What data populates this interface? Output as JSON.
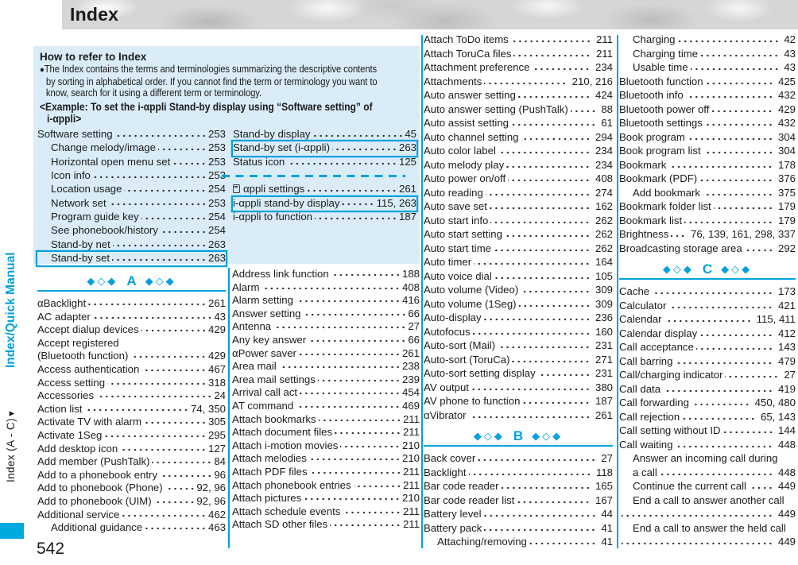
{
  "titlebar": {
    "title": "Index"
  },
  "sidebar": {
    "black_label": "Index (A - C)",
    "arrow": "▼",
    "blue_label": "Index/Quick Manual"
  },
  "page_number": "542",
  "colors": {
    "accent": "#00a1de",
    "box_bg": "#d9ecf8",
    "bar_bg": "#d6d6d6",
    "text": "#1b1b1b"
  },
  "howto": {
    "title": "How to refer to Index",
    "bullet": "The Index contains the terms and terminologies summarizing the descriptive contents\nby sorting in alphabetical order. If you cannot find the term or terminology you want to\nknow, search for it using a different term or terminology.",
    "example_line1": "<Example: To set the i-αppli Stand-by display using “Software setting” of",
    "example_line2": "i-αppli>",
    "left_rows": [
      {
        "label": "Software setting",
        "num": "253"
      },
      {
        "label": "Change melody/image",
        "num": "253",
        "indent": 1
      },
      {
        "label": "Horizontal open menu set",
        "num": "253",
        "indent": 1
      },
      {
        "label": "Icon info",
        "num": "253",
        "indent": 1
      },
      {
        "label": "Location usage",
        "num": "254",
        "indent": 1
      },
      {
        "label": "Network set",
        "num": "253",
        "indent": 1
      },
      {
        "label": "Program guide key",
        "num": "254",
        "indent": 1
      },
      {
        "label": "See phonebook/history",
        "num": "254",
        "indent": 1
      },
      {
        "label": "Stand-by net",
        "num": "263",
        "indent": 1
      },
      {
        "label": "Stand-by set",
        "num": "263",
        "indent": 1,
        "boxed": true
      }
    ],
    "right_rows": [
      {
        "label": "Stand-by display",
        "num": "45"
      },
      {
        "label": "Stand-by set (i-αppli)",
        "num": "263",
        "boxed": true
      },
      {
        "label": "Status icon",
        "num": "125"
      },
      {
        "type": "dashes"
      },
      {
        "label": "αppli settings",
        "num": "261",
        "icon": true
      },
      {
        "label": "i-αppli stand-by display",
        "num": "115, 263",
        "boxed": true
      },
      {
        "label": "i-αppli to function",
        "num": "187"
      }
    ]
  },
  "index": {
    "col1": [
      {
        "type": "section",
        "letter": "A"
      },
      {
        "label": "αBacklight",
        "num": "261"
      },
      {
        "label": "AC adapter",
        "num": "43"
      },
      {
        "label": "Accept dialup devices",
        "num": "429"
      },
      {
        "label": "Accept registered"
      },
      {
        "label": "(Bluetooth function)",
        "num": "429"
      },
      {
        "label": "Access authentication",
        "num": "467"
      },
      {
        "label": "Access setting",
        "num": "318"
      },
      {
        "label": "Accessories",
        "num": "24"
      },
      {
        "label": "Action list",
        "num": "74, 350"
      },
      {
        "label": "Activate TV with alarm",
        "num": "305"
      },
      {
        "label": "Activate 1Seg",
        "num": "295"
      },
      {
        "label": "Add desktop icon",
        "num": "127"
      },
      {
        "label": "Add member (PushTalk)",
        "num": "84"
      },
      {
        "label": "Add to a phonebook entry",
        "num": "96"
      },
      {
        "label": "Add to phonebook (Phone)",
        "num": "92, 96"
      },
      {
        "label": "Add to phonebook (UIM)",
        "num": "92, 96"
      },
      {
        "label": "Additional service",
        "num": "462"
      },
      {
        "label": "Additional guidance",
        "num": "463",
        "indent": 1
      }
    ],
    "col2": [
      {
        "label": "Address link function",
        "num": "188"
      },
      {
        "label": "Alarm",
        "num": "408"
      },
      {
        "label": "Alarm setting",
        "num": "416"
      },
      {
        "label": "Answer setting",
        "num": "66"
      },
      {
        "label": "Antenna",
        "num": "27"
      },
      {
        "label": "Any key answer",
        "num": "66"
      },
      {
        "label": "αPower saver",
        "num": "261"
      },
      {
        "label": "Area mail",
        "num": "238"
      },
      {
        "label": "Area mail settings",
        "num": "239"
      },
      {
        "label": "Arrival call act",
        "num": "454"
      },
      {
        "label": "AT command",
        "num": "469"
      },
      {
        "label": "Attach bookmarks",
        "num": "211"
      },
      {
        "label": "Attach document files",
        "num": "211"
      },
      {
        "label": "Attach i-motion movies",
        "num": "210"
      },
      {
        "label": "Attach melodies",
        "num": "210"
      },
      {
        "label": "Attach PDF files",
        "num": "211"
      },
      {
        "label": "Attach phonebook entries",
        "num": "211"
      },
      {
        "label": "Attach pictures",
        "num": "210"
      },
      {
        "label": "Attach schedule events",
        "num": "211"
      },
      {
        "label": "Attach SD other files",
        "num": "211"
      }
    ],
    "col3": [
      {
        "label": "Attach ToDo items",
        "num": "211"
      },
      {
        "label": "Attach ToruCa files",
        "num": "211"
      },
      {
        "label": "Attachment preference",
        "num": "234"
      },
      {
        "label": "Attachments",
        "num": "210, 216"
      },
      {
        "label": "Auto answer setting",
        "num": "424"
      },
      {
        "label": "Auto answer setting (PushTalk)",
        "num": "88"
      },
      {
        "label": "Auto assist setting",
        "num": "61"
      },
      {
        "label": "Auto channel setting",
        "num": "294"
      },
      {
        "label": "Auto color label",
        "num": "234"
      },
      {
        "label": "Auto melody play",
        "num": "234"
      },
      {
        "label": "Auto power on/off",
        "num": "408"
      },
      {
        "label": "Auto reading",
        "num": "274"
      },
      {
        "label": "Auto save set",
        "num": "162"
      },
      {
        "label": "Auto start info",
        "num": "262"
      },
      {
        "label": "Auto start setting",
        "num": "262"
      },
      {
        "label": "Auto start time",
        "num": "262"
      },
      {
        "label": "Auto timer",
        "num": "164"
      },
      {
        "label": "Auto voice dial",
        "num": "105"
      },
      {
        "label": "Auto volume (Video)",
        "num": "309"
      },
      {
        "label": "Auto volume (1Seg)",
        "num": "309"
      },
      {
        "label": "Auto-display",
        "num": "236"
      },
      {
        "label": "Autofocus",
        "num": "160"
      },
      {
        "label": "Auto-sort (Mail)",
        "num": "231"
      },
      {
        "label": "Auto-sort (ToruCa)",
        "num": "271"
      },
      {
        "label": "Auto-sort setting display",
        "num": "231"
      },
      {
        "label": "AV output",
        "num": "380"
      },
      {
        "label": "AV phone to function",
        "num": "187"
      },
      {
        "label": "αVibrator",
        "num": "261"
      },
      {
        "type": "section",
        "letter": "B"
      },
      {
        "label": "Back cover",
        "num": "27"
      },
      {
        "label": "Backlight",
        "num": "118"
      },
      {
        "label": "Bar code reader",
        "num": "165"
      },
      {
        "label": "Bar code reader list",
        "num": "167"
      },
      {
        "label": "Battery level",
        "num": "44"
      },
      {
        "label": "Battery pack",
        "num": "41"
      },
      {
        "label": "Attaching/removing",
        "num": "41",
        "indent": 1
      }
    ],
    "col4": [
      {
        "label": "Charging",
        "num": "42",
        "indent": 1
      },
      {
        "label": "Charging time",
        "num": "43",
        "indent": 1
      },
      {
        "label": "Usable time",
        "num": "43",
        "indent": 1
      },
      {
        "label": "Bluetooth function",
        "num": "425"
      },
      {
        "label": "Bluetooth info",
        "num": "432"
      },
      {
        "label": "Bluetooth power off",
        "num": "429"
      },
      {
        "label": "Bluetooth settings",
        "num": "432"
      },
      {
        "label": "Book program",
        "num": "304"
      },
      {
        "label": "Book program list",
        "num": "304"
      },
      {
        "label": "Bookmark",
        "num": "178"
      },
      {
        "label": "Bookmark (PDF)",
        "num": "376"
      },
      {
        "label": "Add bookmark",
        "num": "375",
        "indent": 1
      },
      {
        "label": "Bookmark folder list",
        "num": "179"
      },
      {
        "label": "Bookmark list",
        "num": "179"
      },
      {
        "label": "Brightness",
        "num": "76, 139, 161, 298, 337"
      },
      {
        "label": "Broadcasting storage area",
        "num": "292"
      },
      {
        "type": "section",
        "letter": "C"
      },
      {
        "label": "Cache",
        "num": "173"
      },
      {
        "label": "Calculator",
        "num": "421"
      },
      {
        "label": "Calendar",
        "num": "115, 411"
      },
      {
        "label": "Calendar display",
        "num": "412"
      },
      {
        "label": "Call acceptance",
        "num": "143"
      },
      {
        "label": "Call barring",
        "num": "479"
      },
      {
        "label": "Call/charging indicator",
        "num": "27"
      },
      {
        "label": "Call data",
        "num": "419"
      },
      {
        "label": "Call forwarding",
        "num": "450, 480"
      },
      {
        "label": "Call rejection",
        "num": "65, 143"
      },
      {
        "label": "Call setting without ID",
        "num": "144"
      },
      {
        "label": "Call waiting",
        "num": "448"
      },
      {
        "label": "Answer an incoming call during",
        "indent": 1
      },
      {
        "label": "a call",
        "num": "448",
        "indent": 1
      },
      {
        "label": "Continue the current call",
        "num": "449",
        "indent": 1
      },
      {
        "label": "End a call to answer another call",
        "indent": 1
      },
      {
        "label": "",
        "num": "449"
      },
      {
        "label": "End a call to answer the held call",
        "indent": 1
      },
      {
        "label": "",
        "num": "449"
      }
    ]
  }
}
